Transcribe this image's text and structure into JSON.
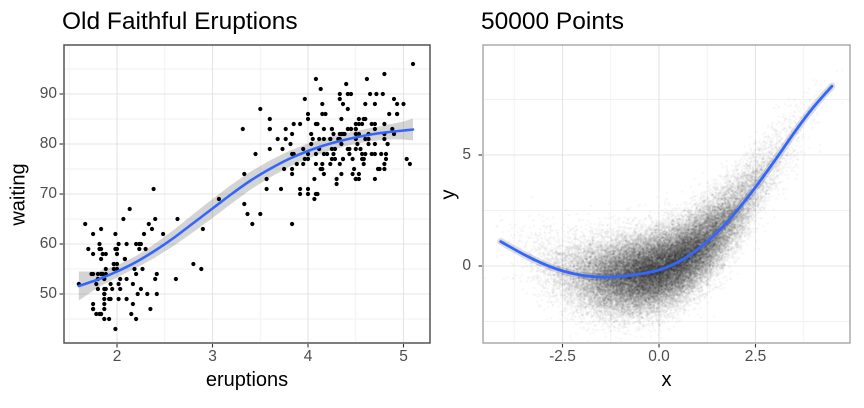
{
  "page": {
    "background": "#ffffff"
  },
  "chart_data": [
    {
      "type": "scatter",
      "title": "Old Faithful Eruptions",
      "xlabel": "eruptions",
      "ylabel": "waiting",
      "x_ticks": [
        2,
        3,
        4,
        5
      ],
      "x_tick_labels": [
        "2",
        "3",
        "4",
        "5"
      ],
      "y_ticks": [
        50,
        60,
        70,
        80,
        90
      ],
      "y_tick_labels": [
        "50",
        "60",
        "70",
        "80",
        "90"
      ],
      "x_minor": [
        1.5,
        2.5,
        3.5,
        4.5
      ],
      "y_minor": [
        45,
        55,
        65,
        75,
        85,
        95
      ],
      "xlim": [
        1.44,
        5.28
      ],
      "ylim": [
        40.2,
        99.8
      ],
      "grid": true,
      "legend": "none",
      "point_color": "#000000",
      "point_radius": 2.1,
      "colors": {
        "grid_major": "#e4e4e4",
        "grid_minor": "#f1f1f1",
        "panel_border": "#474747",
        "tick_mark": "#333333",
        "tick_text": "#4d4d4d",
        "smooth_line": "#3366FF",
        "ribbon": "rgba(125,125,125,0.33)"
      },
      "smooth": {
        "x": [
          1.6,
          1.8,
          2.0,
          2.2,
          2.4,
          2.6,
          2.8,
          3.0,
          3.2,
          3.4,
          3.6,
          3.8,
          4.0,
          4.2,
          4.4,
          4.6,
          4.8,
          5.0,
          5.1
        ],
        "y": [
          51.6,
          52.9,
          54.5,
          56.4,
          58.7,
          61.3,
          64.2,
          67.1,
          70.0,
          72.7,
          75.0,
          77.0,
          78.6,
          79.9,
          80.9,
          81.7,
          82.3,
          82.7,
          82.9
        ],
        "lower": [
          48.7,
          51.3,
          53.3,
          55.2,
          57.3,
          59.7,
          62.4,
          65.2,
          68.1,
          70.9,
          73.3,
          75.4,
          77.1,
          78.5,
          79.6,
          80.4,
          80.9,
          80.9,
          80.7
        ],
        "upper": [
          54.5,
          54.5,
          55.7,
          57.6,
          60.1,
          62.9,
          66.0,
          69.0,
          71.9,
          74.5,
          76.7,
          78.6,
          80.1,
          81.3,
          82.2,
          83.0,
          83.7,
          84.5,
          85.1
        ]
      },
      "points": [
        [
          3.6,
          79
        ],
        [
          1.8,
          54
        ],
        [
          3.333,
          74
        ],
        [
          2.283,
          62
        ],
        [
          4.533,
          85
        ],
        [
          2.883,
          55
        ],
        [
          4.7,
          88
        ],
        [
          3.6,
          85
        ],
        [
          1.95,
          51
        ],
        [
          4.35,
          85
        ],
        [
          1.833,
          54
        ],
        [
          3.917,
          84
        ],
        [
          4.2,
          78
        ],
        [
          1.75,
          47
        ],
        [
          4.7,
          83
        ],
        [
          2.167,
          52
        ],
        [
          1.75,
          62
        ],
        [
          4.8,
          84
        ],
        [
          1.6,
          52
        ],
        [
          4.25,
          79
        ],
        [
          1.8,
          51
        ],
        [
          1.75,
          47
        ],
        [
          3.45,
          78
        ],
        [
          3.067,
          69
        ],
        [
          4.533,
          74
        ],
        [
          3.6,
          83
        ],
        [
          1.967,
          55
        ],
        [
          4.083,
          76
        ],
        [
          3.85,
          78
        ],
        [
          4.433,
          79
        ],
        [
          4.3,
          73
        ],
        [
          4.467,
          77
        ],
        [
          3.367,
          66
        ],
        [
          4.033,
          80
        ],
        [
          3.833,
          74
        ],
        [
          2.017,
          52
        ],
        [
          1.867,
          48
        ],
        [
          4.833,
          80
        ],
        [
          1.833,
          59
        ],
        [
          4.783,
          90
        ],
        [
          4.35,
          80
        ],
        [
          1.883,
          58
        ],
        [
          4.567,
          84
        ],
        [
          1.75,
          58
        ],
        [
          4.533,
          73
        ],
        [
          3.317,
          83
        ],
        [
          3.833,
          64
        ],
        [
          2.1,
          53
        ],
        [
          4.633,
          82
        ],
        [
          2.0,
          59
        ],
        [
          4.8,
          75
        ],
        [
          4.716,
          90
        ],
        [
          1.833,
          54
        ],
        [
          4.833,
          80
        ],
        [
          1.733,
          54
        ],
        [
          4.883,
          83
        ],
        [
          3.717,
          71
        ],
        [
          1.667,
          64
        ],
        [
          4.567,
          77
        ],
        [
          4.317,
          81
        ],
        [
          2.233,
          59
        ],
        [
          4.5,
          84
        ],
        [
          1.75,
          48
        ],
        [
          4.8,
          82
        ],
        [
          1.817,
          60
        ],
        [
          4.4,
          92
        ],
        [
          4.167,
          78
        ],
        [
          4.7,
          78
        ],
        [
          2.067,
          65
        ],
        [
          4.7,
          73
        ],
        [
          4.033,
          82
        ],
        [
          1.967,
          56
        ],
        [
          4.5,
          79
        ],
        [
          4.0,
          71
        ],
        [
          1.983,
          62
        ],
        [
          5.067,
          76
        ],
        [
          2.017,
          60
        ],
        [
          4.567,
          78
        ],
        [
          3.883,
          76
        ],
        [
          3.6,
          83
        ],
        [
          4.133,
          75
        ],
        [
          4.333,
          82
        ],
        [
          4.1,
          70
        ],
        [
          2.633,
          65
        ],
        [
          4.067,
          73
        ],
        [
          4.933,
          88
        ],
        [
          3.95,
          76
        ],
        [
          4.517,
          80
        ],
        [
          2.167,
          48
        ],
        [
          4.0,
          86
        ],
        [
          2.2,
          60
        ],
        [
          4.333,
          90
        ],
        [
          1.867,
          50
        ],
        [
          4.817,
          78
        ],
        [
          1.833,
          63
        ],
        [
          4.3,
          72
        ],
        [
          4.667,
          84
        ],
        [
          3.75,
          75
        ],
        [
          1.867,
          51
        ],
        [
          4.9,
          82
        ],
        [
          2.483,
          62
        ],
        [
          4.367,
          88
        ],
        [
          2.1,
          49
        ],
        [
          4.5,
          83
        ],
        [
          4.05,
          81
        ],
        [
          1.867,
          47
        ],
        [
          4.7,
          84
        ],
        [
          1.783,
          52
        ],
        [
          4.85,
          86
        ],
        [
          3.683,
          81
        ],
        [
          4.733,
          75
        ],
        [
          2.3,
          59
        ],
        [
          4.9,
          89
        ],
        [
          4.417,
          79
        ],
        [
          1.7,
          59
        ],
        [
          4.633,
          81
        ],
        [
          2.317,
          50
        ],
        [
          4.6,
          85
        ],
        [
          1.817,
          59
        ],
        [
          4.417,
          87
        ],
        [
          2.617,
          53
        ],
        [
          4.067,
          69
        ],
        [
          4.25,
          77
        ],
        [
          1.967,
          56
        ],
        [
          4.6,
          88
        ],
        [
          3.767,
          81
        ],
        [
          1.917,
          45
        ],
        [
          4.5,
          82
        ],
        [
          2.267,
          55
        ],
        [
          4.65,
          90
        ],
        [
          1.867,
          45
        ],
        [
          4.167,
          83
        ],
        [
          2.8,
          56
        ],
        [
          4.333,
          89
        ],
        [
          1.833,
          46
        ],
        [
          4.383,
          82
        ],
        [
          1.883,
          51
        ],
        [
          4.933,
          86
        ],
        [
          2.033,
          53
        ],
        [
          3.733,
          79
        ],
        [
          4.233,
          81
        ],
        [
          2.233,
          60
        ],
        [
          4.533,
          82
        ],
        [
          4.817,
          77
        ],
        [
          4.333,
          76
        ],
        [
          1.983,
          59
        ],
        [
          4.633,
          80
        ],
        [
          2.017,
          49
        ],
        [
          5.1,
          96
        ],
        [
          1.8,
          53
        ],
        [
          5.033,
          77
        ],
        [
          4.0,
          77
        ],
        [
          2.4,
          65
        ],
        [
          4.6,
          81
        ],
        [
          3.567,
          71
        ],
        [
          4.0,
          70
        ],
        [
          4.5,
          81
        ],
        [
          4.083,
          93
        ],
        [
          1.8,
          53
        ],
        [
          3.967,
          89
        ],
        [
          2.2,
          45
        ],
        [
          4.15,
          86
        ],
        [
          2.0,
          58
        ],
        [
          3.833,
          78
        ],
        [
          3.5,
          66
        ],
        [
          4.583,
          76
        ],
        [
          2.367,
          63
        ],
        [
          5.0,
          88
        ],
        [
          1.933,
          52
        ],
        [
          4.617,
          93
        ],
        [
          1.917,
          49
        ],
        [
          2.083,
          57
        ],
        [
          4.583,
          77
        ],
        [
          3.333,
          68
        ],
        [
          4.167,
          81
        ],
        [
          4.333,
          81
        ],
        [
          4.5,
          73
        ],
        [
          2.417,
          50
        ],
        [
          4.0,
          85
        ],
        [
          4.167,
          74
        ],
        [
          1.883,
          55
        ],
        [
          4.583,
          77
        ],
        [
          4.25,
          83
        ],
        [
          3.767,
          83
        ],
        [
          2.033,
          51
        ],
        [
          4.433,
          78
        ],
        [
          4.083,
          84
        ],
        [
          1.833,
          46
        ],
        [
          4.417,
          83
        ],
        [
          2.183,
          55
        ],
        [
          4.8,
          81
        ],
        [
          1.833,
          57
        ],
        [
          4.8,
          76
        ],
        [
          4.1,
          84
        ],
        [
          3.966,
          77
        ],
        [
          4.233,
          81
        ],
        [
          3.5,
          87
        ],
        [
          4.366,
          77
        ],
        [
          2.25,
          51
        ],
        [
          4.667,
          78
        ],
        [
          2.1,
          60
        ],
        [
          4.35,
          82
        ],
        [
          4.133,
          91
        ],
        [
          1.867,
          53
        ],
        [
          4.6,
          78
        ],
        [
          1.783,
          46
        ],
        [
          4.367,
          77
        ],
        [
          3.85,
          84
        ],
        [
          1.933,
          49
        ],
        [
          4.5,
          83
        ],
        [
          2.383,
          71
        ],
        [
          4.7,
          80
        ],
        [
          1.867,
          49
        ],
        [
          3.833,
          75
        ],
        [
          3.417,
          64
        ],
        [
          4.233,
          76
        ],
        [
          2.4,
          53
        ],
        [
          4.8,
          94
        ],
        [
          2.0,
          55
        ],
        [
          4.15,
          76
        ],
        [
          1.867,
          50
        ],
        [
          4.267,
          82
        ],
        [
          1.75,
          54
        ],
        [
          4.483,
          75
        ],
        [
          4.0,
          78
        ],
        [
          4.117,
          79
        ],
        [
          4.083,
          78
        ],
        [
          4.267,
          78
        ],
        [
          3.917,
          70
        ],
        [
          4.55,
          79
        ],
        [
          4.083,
          70
        ],
        [
          2.417,
          54
        ],
        [
          4.183,
          86
        ],
        [
          2.217,
          50
        ],
        [
          4.45,
          90
        ],
        [
          1.883,
          54
        ],
        [
          1.85,
          54
        ],
        [
          4.283,
          77
        ],
        [
          3.95,
          79
        ],
        [
          2.333,
          64
        ],
        [
          4.15,
          75
        ],
        [
          2.35,
          47
        ],
        [
          4.933,
          86
        ],
        [
          2.9,
          63
        ],
        [
          4.583,
          85
        ],
        [
          3.833,
          82
        ],
        [
          2.083,
          57
        ],
        [
          4.367,
          82
        ],
        [
          2.133,
          67
        ],
        [
          4.35,
          74
        ],
        [
          2.2,
          54
        ],
        [
          4.45,
          83
        ],
        [
          3.567,
          73
        ],
        [
          4.5,
          73
        ],
        [
          4.15,
          88
        ],
        [
          3.817,
          80
        ],
        [
          3.917,
          71
        ],
        [
          4.45,
          83
        ],
        [
          2.0,
          56
        ],
        [
          4.283,
          79
        ],
        [
          4.767,
          78
        ],
        [
          4.533,
          84
        ],
        [
          1.85,
          58
        ],
        [
          4.25,
          83
        ],
        [
          1.983,
          43
        ],
        [
          2.25,
          60
        ],
        [
          4.75,
          75
        ],
        [
          4.117,
          81
        ],
        [
          2.15,
          46
        ],
        [
          4.417,
          90
        ],
        [
          1.817,
          46
        ],
        [
          4.467,
          74
        ]
      ]
    },
    {
      "type": "scatter",
      "title": "50000 Points",
      "xlabel": "x",
      "ylabel": "y",
      "x_ticks": [
        -2.5,
        0.0,
        2.5
      ],
      "x_tick_labels": [
        "-2.5",
        "0.0",
        "2.5"
      ],
      "y_ticks": [
        0,
        5
      ],
      "y_tick_labels": [
        "0",
        "5"
      ],
      "x_minor": [
        -3.75,
        -1.25,
        1.25,
        3.75
      ],
      "y_minor": [
        -2.5,
        2.5,
        7.5
      ],
      "xlim": [
        -4.56,
        4.95
      ],
      "ylim": [
        -3.47,
        9.95
      ],
      "grid": true,
      "legend": "none",
      "n_points": 50000,
      "point_color": "#000000",
      "point_alpha": 0.033,
      "point_radius": 1.25,
      "cloud_model": {
        "x_mean": 0.1,
        "x_sd": 1.2,
        "y_noise_sd": 0.85,
        "seed": 20240613
      },
      "colors": {
        "grid_major": "#e4e4e4",
        "grid_minor": "#f1f1f1",
        "panel_border": "#9e9e9e",
        "tick_mark": "#333333",
        "tick_text": "#4d4d4d",
        "smooth_line": "#3366FF",
        "ribbon": "rgba(0,0,0,0.13)"
      },
      "smooth": {
        "x": [
          -4.1,
          -3.5,
          -3.0,
          -2.5,
          -2.0,
          -1.5,
          -1.0,
          -0.5,
          0.0,
          0.5,
          1.0,
          1.5,
          2.0,
          2.5,
          3.0,
          3.5,
          4.0,
          4.48
        ],
        "y": [
          1.1,
          0.52,
          0.1,
          -0.22,
          -0.42,
          -0.5,
          -0.47,
          -0.36,
          -0.18,
          0.18,
          0.75,
          1.5,
          2.45,
          3.55,
          4.75,
          6.0,
          7.15,
          8.1
        ]
      }
    }
  ]
}
